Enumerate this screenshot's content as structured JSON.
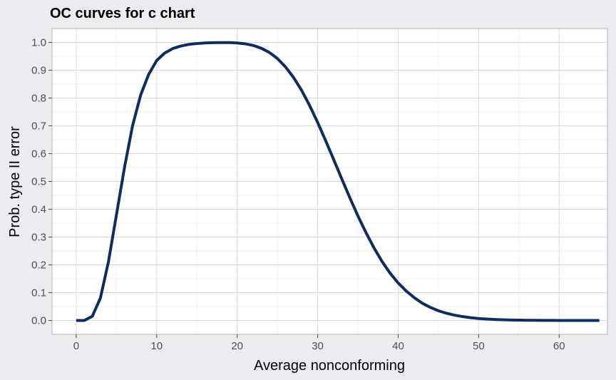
{
  "chart_data": {
    "type": "line",
    "title": "OC curves for c chart",
    "xlabel": "Average nonconforming",
    "ylabel": "Prob. type II error",
    "xlim": [
      -3,
      66
    ],
    "ylim": [
      -0.05,
      1.05
    ],
    "x_ticks": [
      0,
      10,
      20,
      30,
      40,
      50,
      60
    ],
    "y_ticks": [
      0.0,
      0.1,
      0.2,
      0.3,
      0.4,
      0.5,
      0.6,
      0.7,
      0.8,
      0.9,
      1.0
    ],
    "x_tick_labels": [
      "0",
      "10",
      "20",
      "30",
      "40",
      "50",
      "60"
    ],
    "y_tick_labels": [
      "0.0",
      "0.1",
      "0.2",
      "0.3",
      "0.4",
      "0.5",
      "0.6",
      "0.7",
      "0.8",
      "0.9",
      "1.0"
    ],
    "grid": true,
    "legend": "none",
    "colors": {
      "line": "#0e2d5e",
      "panel_background": "#ffffff",
      "page_background": "#ebecf0",
      "grid_major": "#d9d9d9",
      "grid_minor": "#efefef",
      "panel_border": "#b3b3b3"
    },
    "series": [
      {
        "x": [
          0,
          1,
          2,
          3,
          4,
          5,
          6,
          7,
          8,
          9,
          10,
          11,
          12,
          13,
          14,
          15,
          16,
          17,
          18,
          19,
          20,
          21,
          22,
          23,
          24,
          25,
          26,
          27,
          28,
          29,
          30,
          31,
          32,
          33,
          34,
          35,
          36,
          37,
          38,
          39,
          40,
          41,
          42,
          43,
          44,
          45,
          46,
          47,
          48,
          49,
          50,
          51,
          52,
          53,
          54,
          55,
          56,
          57,
          58,
          59,
          60,
          61,
          62,
          63,
          64,
          65
        ],
        "y": [
          0.0,
          0.0,
          0.015,
          0.08,
          0.21,
          0.38,
          0.55,
          0.7,
          0.81,
          0.885,
          0.935,
          0.962,
          0.978,
          0.987,
          0.993,
          0.996,
          0.998,
          0.999,
          0.9995,
          0.9995,
          0.998,
          0.995,
          0.989,
          0.979,
          0.964,
          0.942,
          0.912,
          0.874,
          0.828,
          0.773,
          0.712,
          0.646,
          0.578,
          0.509,
          0.441,
          0.376,
          0.316,
          0.261,
          0.212,
          0.17,
          0.135,
          0.106,
          0.082,
          0.062,
          0.047,
          0.035,
          0.026,
          0.019,
          0.014,
          0.01,
          0.007,
          0.005,
          0.0035,
          0.0025,
          0.0017,
          0.0012,
          0.0008,
          0.0005,
          0.0003,
          0.0002,
          0.0001,
          0.0001,
          0.0,
          0.0,
          0.0,
          0.0
        ]
      }
    ]
  }
}
